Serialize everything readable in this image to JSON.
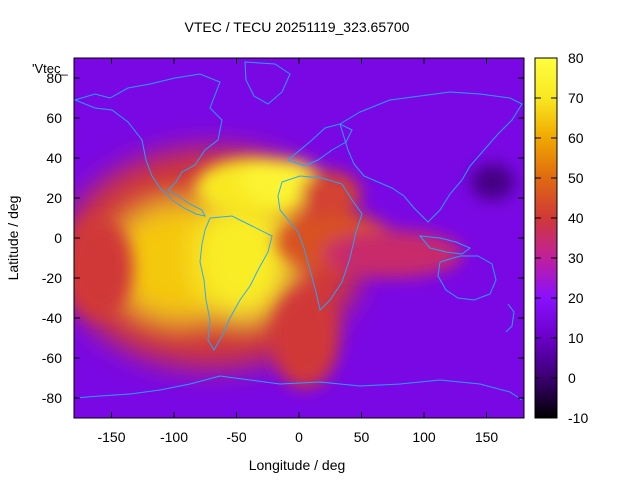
{
  "chart_data": {
    "type": "heatmap",
    "title": "VTEC / TECU 20251119_323.65700",
    "xlabel": "Longitude / deg",
    "ylabel": "Latitude / deg",
    "series_label": "'Vtec_",
    "xlim": [
      -180,
      180
    ],
    "ylim": [
      -90,
      90
    ],
    "x_ticks": [
      -150,
      -100,
      -50,
      0,
      50,
      100,
      150
    ],
    "y_ticks": [
      -80,
      -60,
      -40,
      -20,
      0,
      20,
      40,
      60,
      80
    ],
    "colorbar": {
      "range": [
        -10,
        80
      ],
      "ticks": [
        -10,
        0,
        10,
        20,
        30,
        40,
        50,
        60,
        70,
        80
      ],
      "palette": [
        "#000000",
        "#3a0070",
        "#6a00c8",
        "#8a10ff",
        "#c0209c",
        "#d03838",
        "#e06a10",
        "#f0a800",
        "#f8e820",
        "#ffff40"
      ]
    },
    "background_tecu": 15,
    "features": [
      {
        "name": "equatorial-anomaly-americas",
        "lon": -95,
        "lat": -12,
        "tecu": 65
      },
      {
        "name": "anomaly-crest-south-america",
        "lon": -45,
        "lat": -10,
        "tecu": 72
      },
      {
        "name": "anomaly-crest-north",
        "lon": -35,
        "lat": 25,
        "tecu": 70
      },
      {
        "name": "peak-north-atlantic",
        "lon": -15,
        "lat": 28,
        "tecu": 75
      },
      {
        "name": "africa-band",
        "lon": 30,
        "lat": -2,
        "tecu": 45
      },
      {
        "name": "arabia-blob",
        "lon": 25,
        "lat": 22,
        "tecu": 42
      },
      {
        "name": "south-atlantic-tongue",
        "lon": 5,
        "lat": -50,
        "tecu": 40
      },
      {
        "name": "indian-ocean-band",
        "lon": 75,
        "lat": -8,
        "tecu": 35
      },
      {
        "name": "pacific-wing",
        "lon": -160,
        "lat": -15,
        "tecu": 40
      },
      {
        "name": "low-north-pacific-east",
        "lon": 155,
        "lat": 28,
        "tecu": 2
      }
    ]
  }
}
